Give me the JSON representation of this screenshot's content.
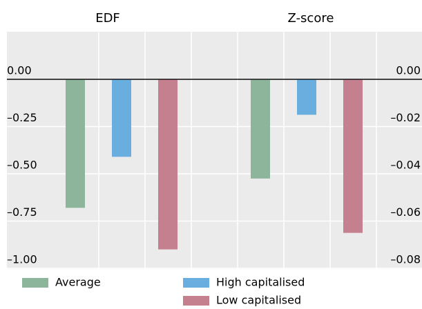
{
  "chart_data": [
    {
      "type": "bar",
      "title": "EDF",
      "series": [
        {
          "name": "Average",
          "color": "#8db59c",
          "values": [
            -0.68
          ]
        },
        {
          "name": "High capitalised",
          "color": "#6aaee0",
          "values": [
            -0.41
          ]
        },
        {
          "name": "Low capitalised",
          "color": "#c5808f",
          "values": [
            -0.9
          ]
        }
      ],
      "ylim": [
        -1.0,
        0.25
      ],
      "yticks": [
        {
          "value": 0,
          "label": "0.00"
        },
        {
          "value": -0.25,
          "label": "–0.25"
        },
        {
          "value": -0.5,
          "label": "–0.50"
        },
        {
          "value": -0.75,
          "label": "–0.75"
        },
        {
          "value": -1.0,
          "label": "–1.00"
        }
      ],
      "grid": true
    },
    {
      "type": "bar",
      "title": "Z-score",
      "series": [
        {
          "color": "#8db59c",
          "values": [
            -0.042
          ]
        },
        {
          "color": "#6aaee0",
          "values": [
            -0.015
          ]
        },
        {
          "color": "#c5808f",
          "values": [
            -0.065
          ]
        }
      ],
      "ylim": [
        -0.08,
        0.02
      ],
      "yticks": [
        {
          "value": 0,
          "label": "0.00"
        },
        {
          "value": -0.02,
          "label": "–0.02"
        },
        {
          "value": -0.04,
          "label": "–0.04"
        },
        {
          "value": -0.06,
          "label": "–0.06"
        },
        {
          "value": -0.08,
          "label": "–0.08"
        }
      ],
      "grid": true
    }
  ]
}
